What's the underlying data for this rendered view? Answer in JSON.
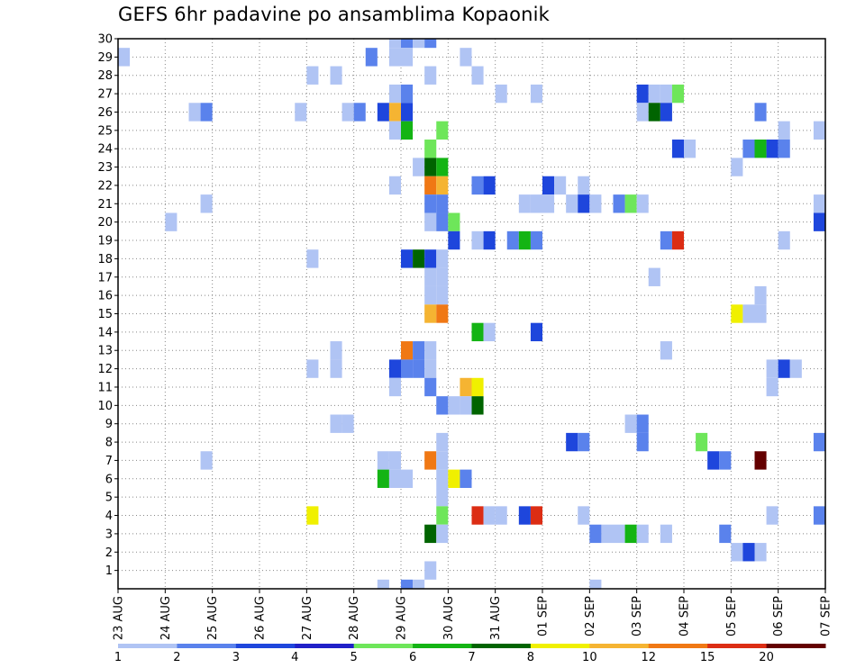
{
  "chart_data": {
    "type": "heatmap",
    "title": "GEFS 6hr padavine po ansamblima Kopaonik",
    "xlabel": "",
    "ylabel": "",
    "x_ticks": [
      "23 AUG",
      "24 AUG",
      "25 AUG",
      "26 AUG",
      "27 AUG",
      "28 AUG",
      "29 AUG",
      "30 AUG",
      "31 AUG",
      "01 SEP",
      "02 SEP",
      "03 SEP",
      "04 SEP",
      "05 SEP",
      "06 SEP",
      "07 SEP"
    ],
    "y_ticks": [
      "1",
      "2",
      "3",
      "4",
      "5",
      "6",
      "7",
      "8",
      "9",
      "10",
      "11",
      "12",
      "13",
      "14",
      "15",
      "16",
      "17",
      "18",
      "19",
      "20",
      "21",
      "22",
      "23",
      "24",
      "25",
      "26",
      "27",
      "28",
      "29",
      "30"
    ],
    "x_range_days": [
      0,
      15
    ],
    "y_range": [
      0,
      30
    ],
    "steps_per_day": 4,
    "grid": true,
    "colorbar": {
      "levels": [
        "1",
        "2",
        "3",
        "4",
        "5",
        "6",
        "7",
        "8",
        "10",
        "12",
        "15",
        "20"
      ],
      "colors": [
        "#b0c4f4",
        "#5a82ec",
        "#1e46dc",
        "#2020c8",
        "#6ee65a",
        "#14b414",
        "#006400",
        "#f0f000",
        "#f5b432",
        "#f07814",
        "#dc2d14",
        "#640000"
      ]
    },
    "cells": [
      [
        30,
        23,
        1
      ],
      [
        30,
        24,
        2
      ],
      [
        30,
        25,
        1
      ],
      [
        30,
        26,
        2
      ],
      [
        29,
        0,
        1
      ],
      [
        29,
        21,
        2
      ],
      [
        29,
        23,
        1
      ],
      [
        29,
        24,
        1
      ],
      [
        29,
        29,
        1
      ],
      [
        28,
        16,
        1
      ],
      [
        28,
        18,
        1
      ],
      [
        28,
        26,
        1
      ],
      [
        28,
        30,
        1
      ],
      [
        27,
        23,
        1
      ],
      [
        27,
        24,
        2
      ],
      [
        27,
        32,
        1
      ],
      [
        27,
        35,
        1
      ],
      [
        27,
        44,
        3
      ],
      [
        27,
        45,
        1
      ],
      [
        27,
        46,
        1
      ],
      [
        27,
        47,
        5
      ],
      [
        26,
        6,
        1
      ],
      [
        26,
        7,
        2
      ],
      [
        26,
        15,
        1
      ],
      [
        26,
        19,
        1
      ],
      [
        26,
        20,
        2
      ],
      [
        26,
        22,
        3
      ],
      [
        26,
        23,
        10
      ],
      [
        26,
        24,
        3
      ],
      [
        26,
        44,
        1
      ],
      [
        26,
        45,
        7
      ],
      [
        26,
        46,
        3
      ],
      [
        26,
        54,
        2
      ],
      [
        25,
        23,
        1
      ],
      [
        25,
        24,
        6
      ],
      [
        25,
        27,
        5
      ],
      [
        25,
        56,
        1
      ],
      [
        25,
        59,
        1
      ],
      [
        24,
        26,
        5
      ],
      [
        24,
        47,
        3
      ],
      [
        24,
        48,
        1
      ],
      [
        24,
        53,
        2
      ],
      [
        24,
        54,
        6
      ],
      [
        24,
        55,
        3
      ],
      [
        24,
        56,
        2
      ],
      [
        23,
        25,
        1
      ],
      [
        23,
        26,
        7
      ],
      [
        23,
        27,
        6
      ],
      [
        23,
        52,
        1
      ],
      [
        22,
        23,
        1
      ],
      [
        22,
        26,
        12
      ],
      [
        22,
        27,
        10
      ],
      [
        22,
        30,
        2
      ],
      [
        22,
        31,
        3
      ],
      [
        22,
        36,
        3
      ],
      [
        22,
        37,
        1
      ],
      [
        22,
        39,
        1
      ],
      [
        21,
        7,
        1
      ],
      [
        21,
        26,
        2
      ],
      [
        21,
        27,
        2
      ],
      [
        21,
        34,
        1
      ],
      [
        21,
        35,
        1
      ],
      [
        21,
        36,
        1
      ],
      [
        21,
        38,
        1
      ],
      [
        21,
        39,
        3
      ],
      [
        21,
        40,
        1
      ],
      [
        21,
        42,
        2
      ],
      [
        21,
        43,
        5
      ],
      [
        21,
        44,
        1
      ],
      [
        21,
        59,
        1
      ],
      [
        20,
        4,
        1
      ],
      [
        20,
        26,
        1
      ],
      [
        20,
        27,
        2
      ],
      [
        20,
        28,
        5
      ],
      [
        20,
        59,
        3
      ],
      [
        19,
        28,
        3
      ],
      [
        19,
        30,
        1
      ],
      [
        19,
        31,
        3
      ],
      [
        19,
        33,
        2
      ],
      [
        19,
        34,
        6
      ],
      [
        19,
        35,
        2
      ],
      [
        19,
        46,
        2
      ],
      [
        19,
        47,
        15
      ],
      [
        19,
        56,
        1
      ],
      [
        18,
        16,
        1
      ],
      [
        18,
        24,
        3
      ],
      [
        18,
        25,
        7
      ],
      [
        18,
        26,
        3
      ],
      [
        18,
        27,
        1
      ],
      [
        17,
        26,
        1
      ],
      [
        17,
        27,
        1
      ],
      [
        17,
        45,
        1
      ],
      [
        16,
        26,
        1
      ],
      [
        16,
        27,
        1
      ],
      [
        16,
        54,
        1
      ],
      [
        15,
        26,
        10
      ],
      [
        15,
        27,
        12
      ],
      [
        15,
        52,
        8
      ],
      [
        15,
        53,
        1
      ],
      [
        15,
        54,
        1
      ],
      [
        14,
        30,
        6
      ],
      [
        14,
        31,
        1
      ],
      [
        14,
        35,
        3
      ],
      [
        13,
        18,
        1
      ],
      [
        13,
        24,
        12
      ],
      [
        13,
        25,
        2
      ],
      [
        13,
        26,
        1
      ],
      [
        13,
        46,
        1
      ],
      [
        12,
        16,
        1
      ],
      [
        12,
        18,
        1
      ],
      [
        12,
        23,
        3
      ],
      [
        12,
        24,
        2
      ],
      [
        12,
        25,
        2
      ],
      [
        12,
        26,
        1
      ],
      [
        12,
        55,
        1
      ],
      [
        12,
        56,
        3
      ],
      [
        12,
        57,
        1
      ],
      [
        11,
        23,
        1
      ],
      [
        11,
        26,
        2
      ],
      [
        11,
        29,
        10
      ],
      [
        11,
        30,
        8
      ],
      [
        11,
        55,
        1
      ],
      [
        10,
        27,
        2
      ],
      [
        10,
        28,
        1
      ],
      [
        10,
        29,
        1
      ],
      [
        10,
        30,
        7
      ],
      [
        9,
        18,
        1
      ],
      [
        9,
        19,
        1
      ],
      [
        9,
        43,
        1
      ],
      [
        9,
        44,
        2
      ],
      [
        8,
        27,
        1
      ],
      [
        8,
        38,
        3
      ],
      [
        8,
        39,
        2
      ],
      [
        8,
        44,
        2
      ],
      [
        8,
        49,
        5
      ],
      [
        8,
        59,
        2
      ],
      [
        8,
        60,
        3
      ],
      [
        7,
        7,
        1
      ],
      [
        7,
        22,
        1
      ],
      [
        7,
        23,
        1
      ],
      [
        7,
        26,
        12
      ],
      [
        7,
        27,
        1
      ],
      [
        7,
        50,
        3
      ],
      [
        7,
        51,
        2
      ],
      [
        7,
        54,
        20
      ],
      [
        6,
        22,
        6
      ],
      [
        6,
        23,
        1
      ],
      [
        6,
        24,
        1
      ],
      [
        6,
        27,
        1
      ],
      [
        6,
        28,
        8
      ],
      [
        6,
        29,
        2
      ],
      [
        5,
        27,
        1
      ],
      [
        4,
        16,
        8
      ],
      [
        4,
        27,
        5
      ],
      [
        4,
        30,
        15
      ],
      [
        4,
        31,
        1
      ],
      [
        4,
        32,
        1
      ],
      [
        4,
        34,
        3
      ],
      [
        4,
        35,
        15
      ],
      [
        4,
        39,
        1
      ],
      [
        4,
        55,
        1
      ],
      [
        4,
        59,
        2
      ],
      [
        4,
        60,
        2
      ],
      [
        3,
        26,
        7
      ],
      [
        3,
        27,
        1
      ],
      [
        3,
        40,
        2
      ],
      [
        3,
        41,
        1
      ],
      [
        3,
        42,
        1
      ],
      [
        3,
        43,
        6
      ],
      [
        3,
        44,
        1
      ],
      [
        3,
        46,
        1
      ],
      [
        3,
        51,
        2
      ],
      [
        2,
        52,
        1
      ],
      [
        2,
        53,
        3
      ],
      [
        2,
        54,
        1
      ],
      [
        1,
        26,
        1
      ],
      [
        0,
        22,
        1
      ],
      [
        0,
        24,
        2
      ],
      [
        0,
        25,
        1
      ],
      [
        0,
        40,
        1
      ]
    ]
  }
}
